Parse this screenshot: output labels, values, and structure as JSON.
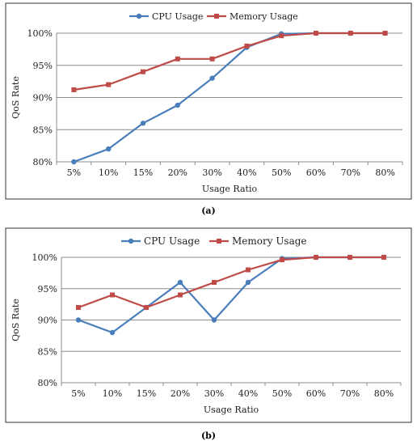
{
  "colors": {
    "cpu": "#4a7ebb",
    "memory": "#be4b48",
    "grid": "#8c8c8c",
    "frame": "#333333",
    "text": "#222222"
  },
  "chart_data": [
    {
      "type": "line",
      "caption": "(a)",
      "categories": [
        "5%",
        "10%",
        "15%",
        "20%",
        "30%",
        "40%",
        "50%",
        "60%",
        "70%",
        "80%"
      ],
      "series": [
        {
          "name": "CPU Usage",
          "color": "#4a7ebb",
          "marker": "circle",
          "values": [
            80,
            82,
            86,
            88.8,
            93,
            97.8,
            99.9,
            100,
            100,
            100
          ]
        },
        {
          "name": "Memory Usage",
          "color": "#be4b48",
          "marker": "square",
          "values": [
            91.2,
            92,
            94,
            96,
            96,
            98,
            99.6,
            100,
            100,
            100
          ]
        }
      ],
      "xlabel": "Usage Ratio",
      "ylabel": "QoS Rate",
      "ylim": [
        80,
        100
      ],
      "yticks": [
        80,
        85,
        90,
        95,
        100
      ],
      "ytick_labels": [
        "80%",
        "85%",
        "90%",
        "95%",
        "100%"
      ],
      "grid": true,
      "legend": "top-center"
    },
    {
      "type": "line",
      "caption": "(b)",
      "categories": [
        "5%",
        "10%",
        "15%",
        "20%",
        "30%",
        "40%",
        "50%",
        "60%",
        "70%",
        "80%"
      ],
      "series": [
        {
          "name": "CPU Usage",
          "color": "#4a7ebb",
          "marker": "circle",
          "values": [
            90,
            88,
            92,
            96,
            90,
            96,
            99.8,
            100,
            100,
            100
          ]
        },
        {
          "name": "Memory Usage",
          "color": "#be4b48",
          "marker": "square",
          "values": [
            92,
            94,
            92,
            94,
            96,
            98,
            99.6,
            100,
            100,
            100
          ]
        }
      ],
      "xlabel": "Usage Ratio",
      "ylabel": "QoS Rate",
      "ylim": [
        80,
        100
      ],
      "yticks": [
        80,
        85,
        90,
        95,
        100
      ],
      "ytick_labels": [
        "80%",
        "85%",
        "90%",
        "95%",
        "100%"
      ],
      "grid": true,
      "legend": "top-center"
    }
  ]
}
